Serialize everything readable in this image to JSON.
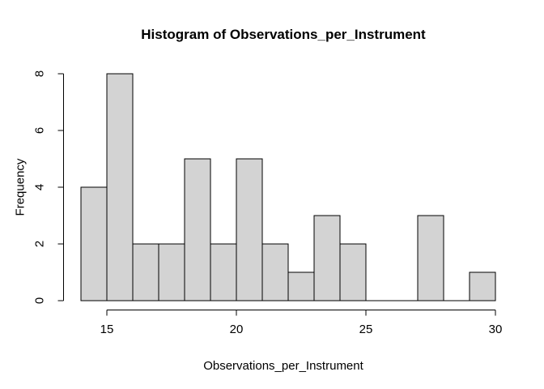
{
  "chart_data": {
    "type": "bar",
    "subtype": "histogram",
    "title": "Histogram of Observations_per_Instrument",
    "xlabel": "Observations_per_Instrument",
    "ylabel": "Frequency",
    "bins": {
      "start": 14,
      "width": 1,
      "edges": [
        14,
        15,
        16,
        17,
        18,
        19,
        20,
        21,
        22,
        23,
        24,
        25,
        26,
        27,
        28,
        29,
        30
      ]
    },
    "counts": [
      4,
      8,
      2,
      2,
      5,
      2,
      5,
      2,
      1,
      3,
      2,
      0,
      0,
      3,
      0,
      1
    ],
    "x_ticks": [
      15,
      20,
      25,
      30
    ],
    "y_ticks": [
      0,
      2,
      4,
      6,
      8
    ],
    "xlim": [
      14,
      30
    ],
    "ylim": [
      0,
      8
    ],
    "grid": false,
    "legend": "none",
    "colors": {
      "bar_fill": "#d3d3d3",
      "bar_stroke": "#000000",
      "axis": "#000000",
      "text": "#000000",
      "background": "#ffffff"
    }
  }
}
